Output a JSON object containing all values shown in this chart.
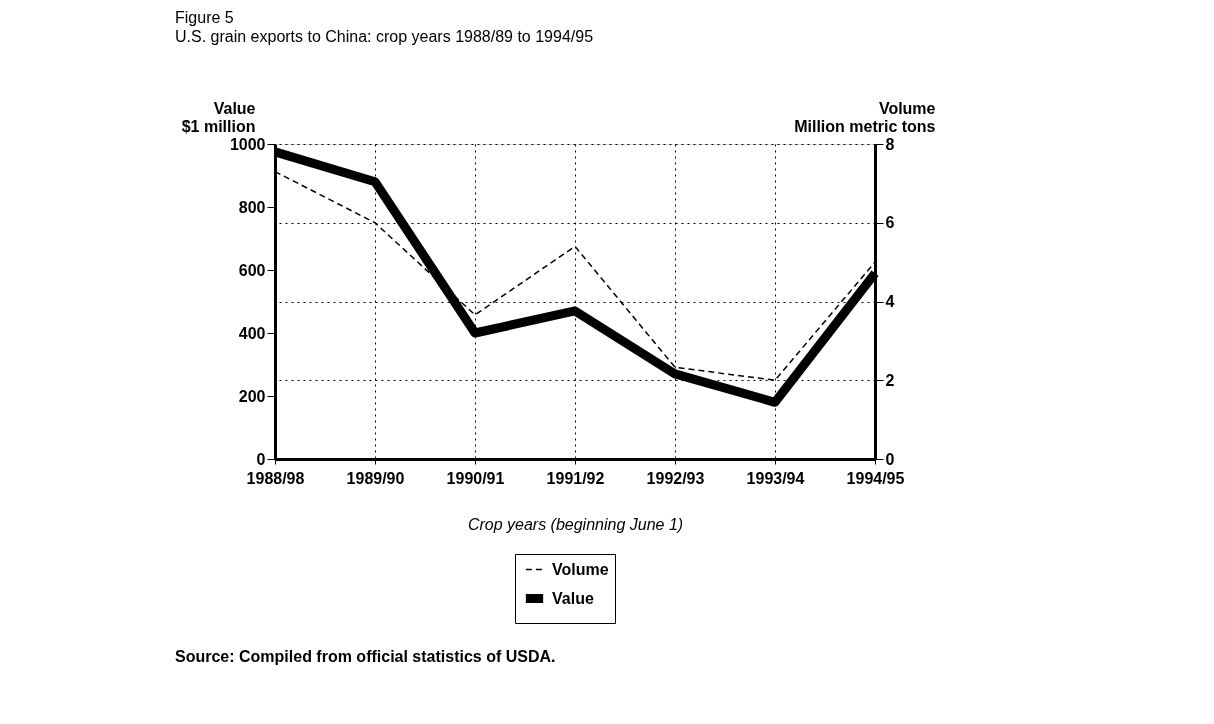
{
  "chart_data": {
    "type": "line",
    "title": "Figure 5",
    "subtitle": "U.S. grain exports to China:  crop years 1988/89 to 1994/95",
    "xlabel": "Crop years (beginning June 1)",
    "ylabel": "Value\n$1 million",
    "y2label": "Volume\nMillion metric tons",
    "categories": [
      "1988/98",
      "1989/90",
      "1990/91",
      "1991/92",
      "1992/93",
      "1993/94",
      "1994/95"
    ],
    "series": [
      {
        "name": "Volume",
        "color": "#000000",
        "axis": "y2",
        "line_style": "dashed",
        "values": [
          7.3,
          6.0,
          3.66,
          5.4,
          2.33,
          2.0,
          5.0
        ]
      },
      {
        "name": "Value",
        "color": "#000000",
        "line_style": "solid",
        "values": [
          975,
          880,
          400,
          470,
          270,
          180,
          590
        ]
      }
    ],
    "ylim": [
      0,
      1000
    ],
    "yticks": [
      0,
      200,
      400,
      600,
      800,
      1000
    ],
    "y2lim": [
      0,
      8
    ],
    "y2ticks": [
      0,
      2,
      4,
      6,
      8
    ],
    "grid": true,
    "legend": "bottom",
    "annotations": [
      "Source:  Compiled from official statistics of  USDA."
    ]
  }
}
